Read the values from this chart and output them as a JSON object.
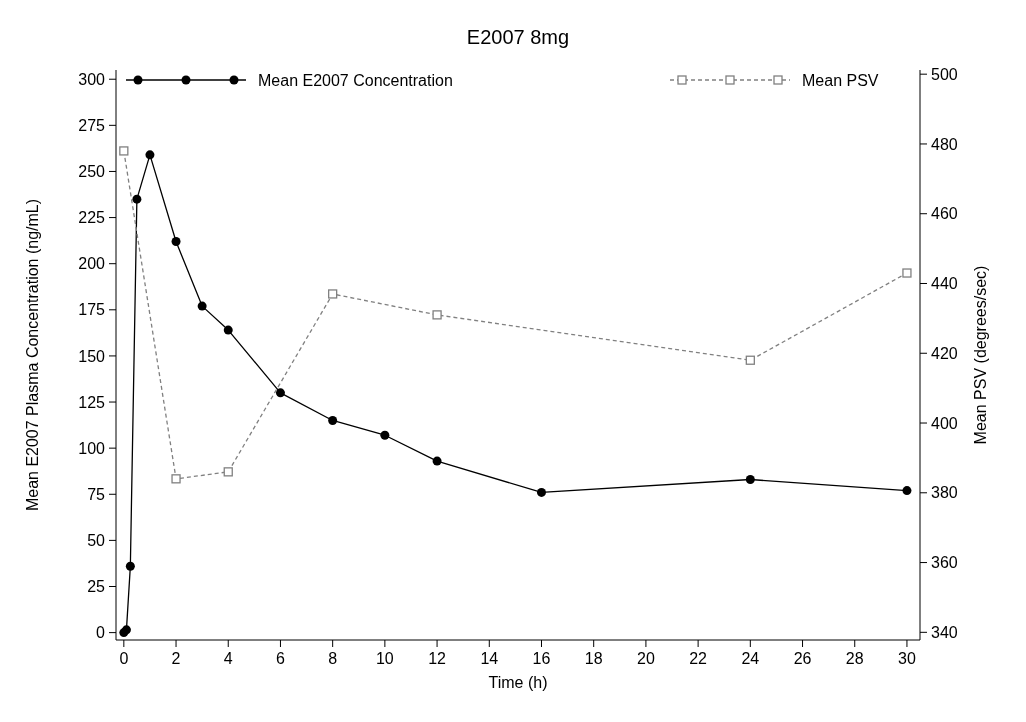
{
  "chart_data": {
    "type": "line",
    "title": "E2007 8mg",
    "xlabel": "Time (h)",
    "ylabel": "Mean E2007 Plasma Concentration (ng/mL)",
    "y2label": "Mean PSV (degrees/sec)",
    "xlim": [
      -0.3,
      30.5
    ],
    "xticks": [
      0,
      2,
      4,
      6,
      8,
      10,
      12,
      14,
      16,
      18,
      20,
      22,
      24,
      26,
      28,
      30
    ],
    "ylim": [
      -4,
      305
    ],
    "yticks": [
      0,
      25,
      50,
      75,
      100,
      125,
      150,
      175,
      200,
      225,
      250,
      275,
      300
    ],
    "y2lim": [
      337.8,
      501.2
    ],
    "y2ticks": [
      340,
      360,
      380,
      400,
      420,
      440,
      460,
      480,
      500
    ],
    "legend": "top",
    "grid": false,
    "series": [
      {
        "name": "Mean E2007 Concentration",
        "color": "#000000",
        "marker": "circle",
        "line_style": "solid",
        "x": [
          0,
          0.1,
          0.25,
          0.5,
          1,
          2,
          3,
          4,
          6,
          8,
          10,
          12,
          16,
          24,
          30
        ],
        "values": [
          0,
          1.5,
          36,
          235,
          259,
          212,
          177,
          164,
          130,
          115,
          107,
          93,
          76,
          83,
          77
        ]
      },
      {
        "name": "Mean PSV",
        "color": "#808080",
        "marker": "square",
        "line_style": "dashed",
        "axis": "y2",
        "x": [
          0,
          2,
          4,
          8,
          12,
          24,
          30
        ],
        "values": [
          478,
          384,
          386,
          437,
          431,
          418,
          443
        ]
      }
    ]
  }
}
